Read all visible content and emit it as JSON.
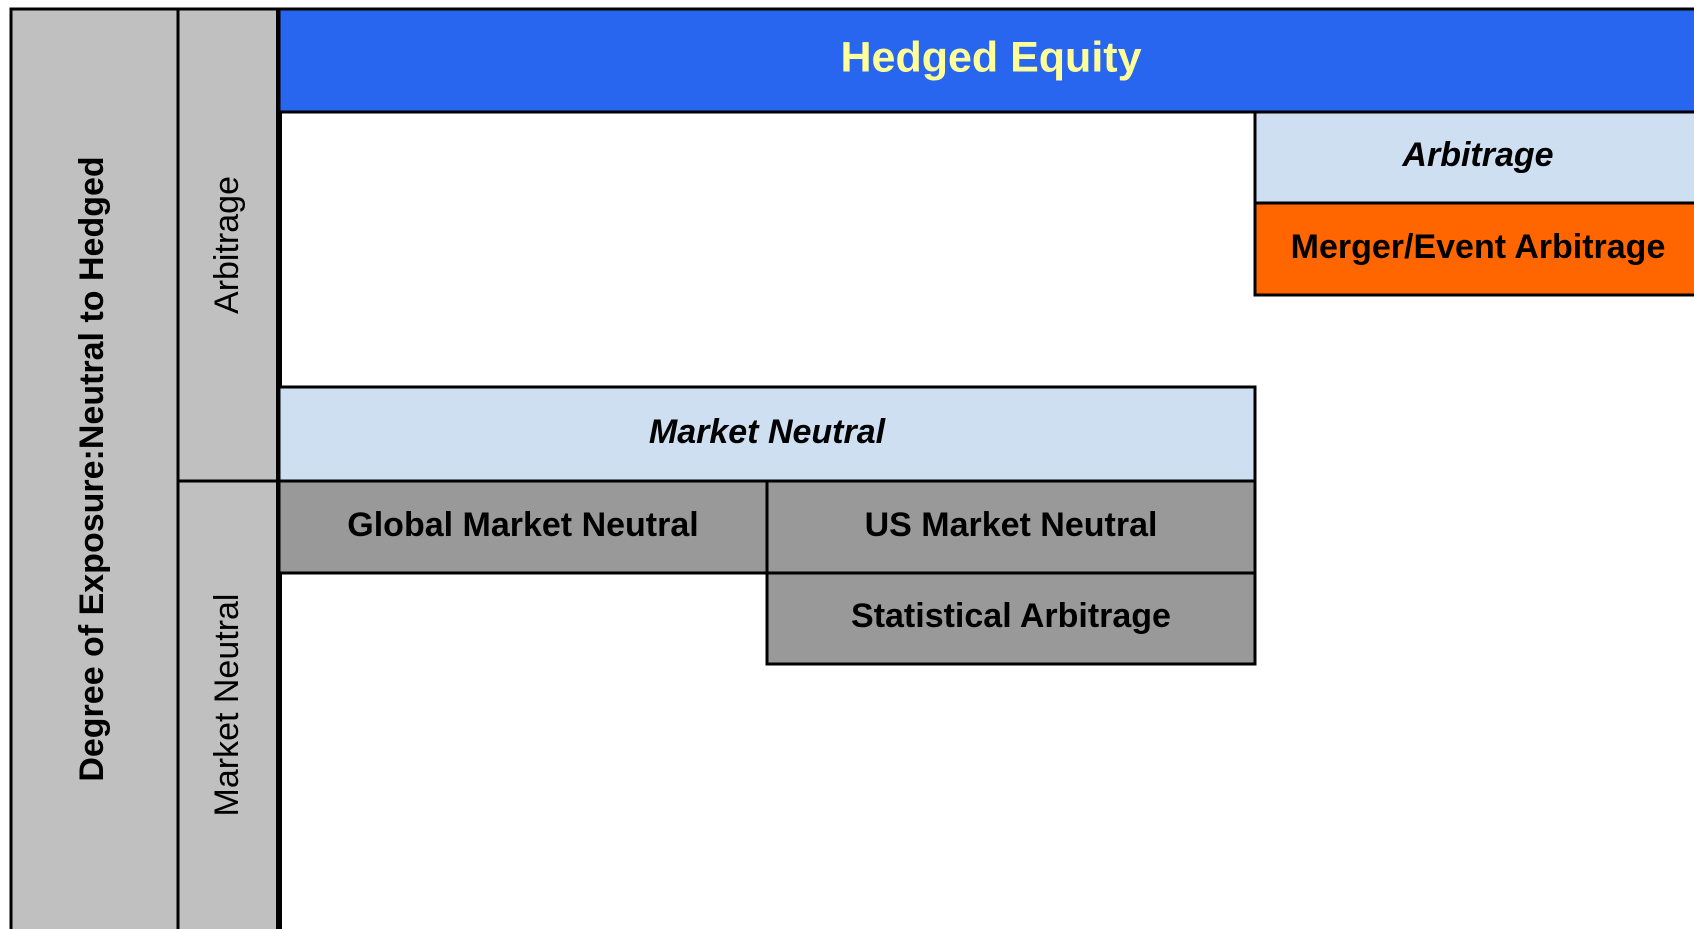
{
  "header": {
    "title": "Hedged Equity"
  },
  "axis": {
    "label": "Degree of Exposure:Neutral to Hedged"
  },
  "rows": [
    "Arbitrage",
    "Market Neutral"
  ],
  "groups": [
    {
      "title": "Arbitrage",
      "cells": [
        "Merger/Event Arbitrage"
      ]
    },
    {
      "title": "Market Neutral",
      "cells": [
        "Global Market Neutral",
        "US Market Neutral",
        "Statistical Arbitrage"
      ]
    }
  ]
}
